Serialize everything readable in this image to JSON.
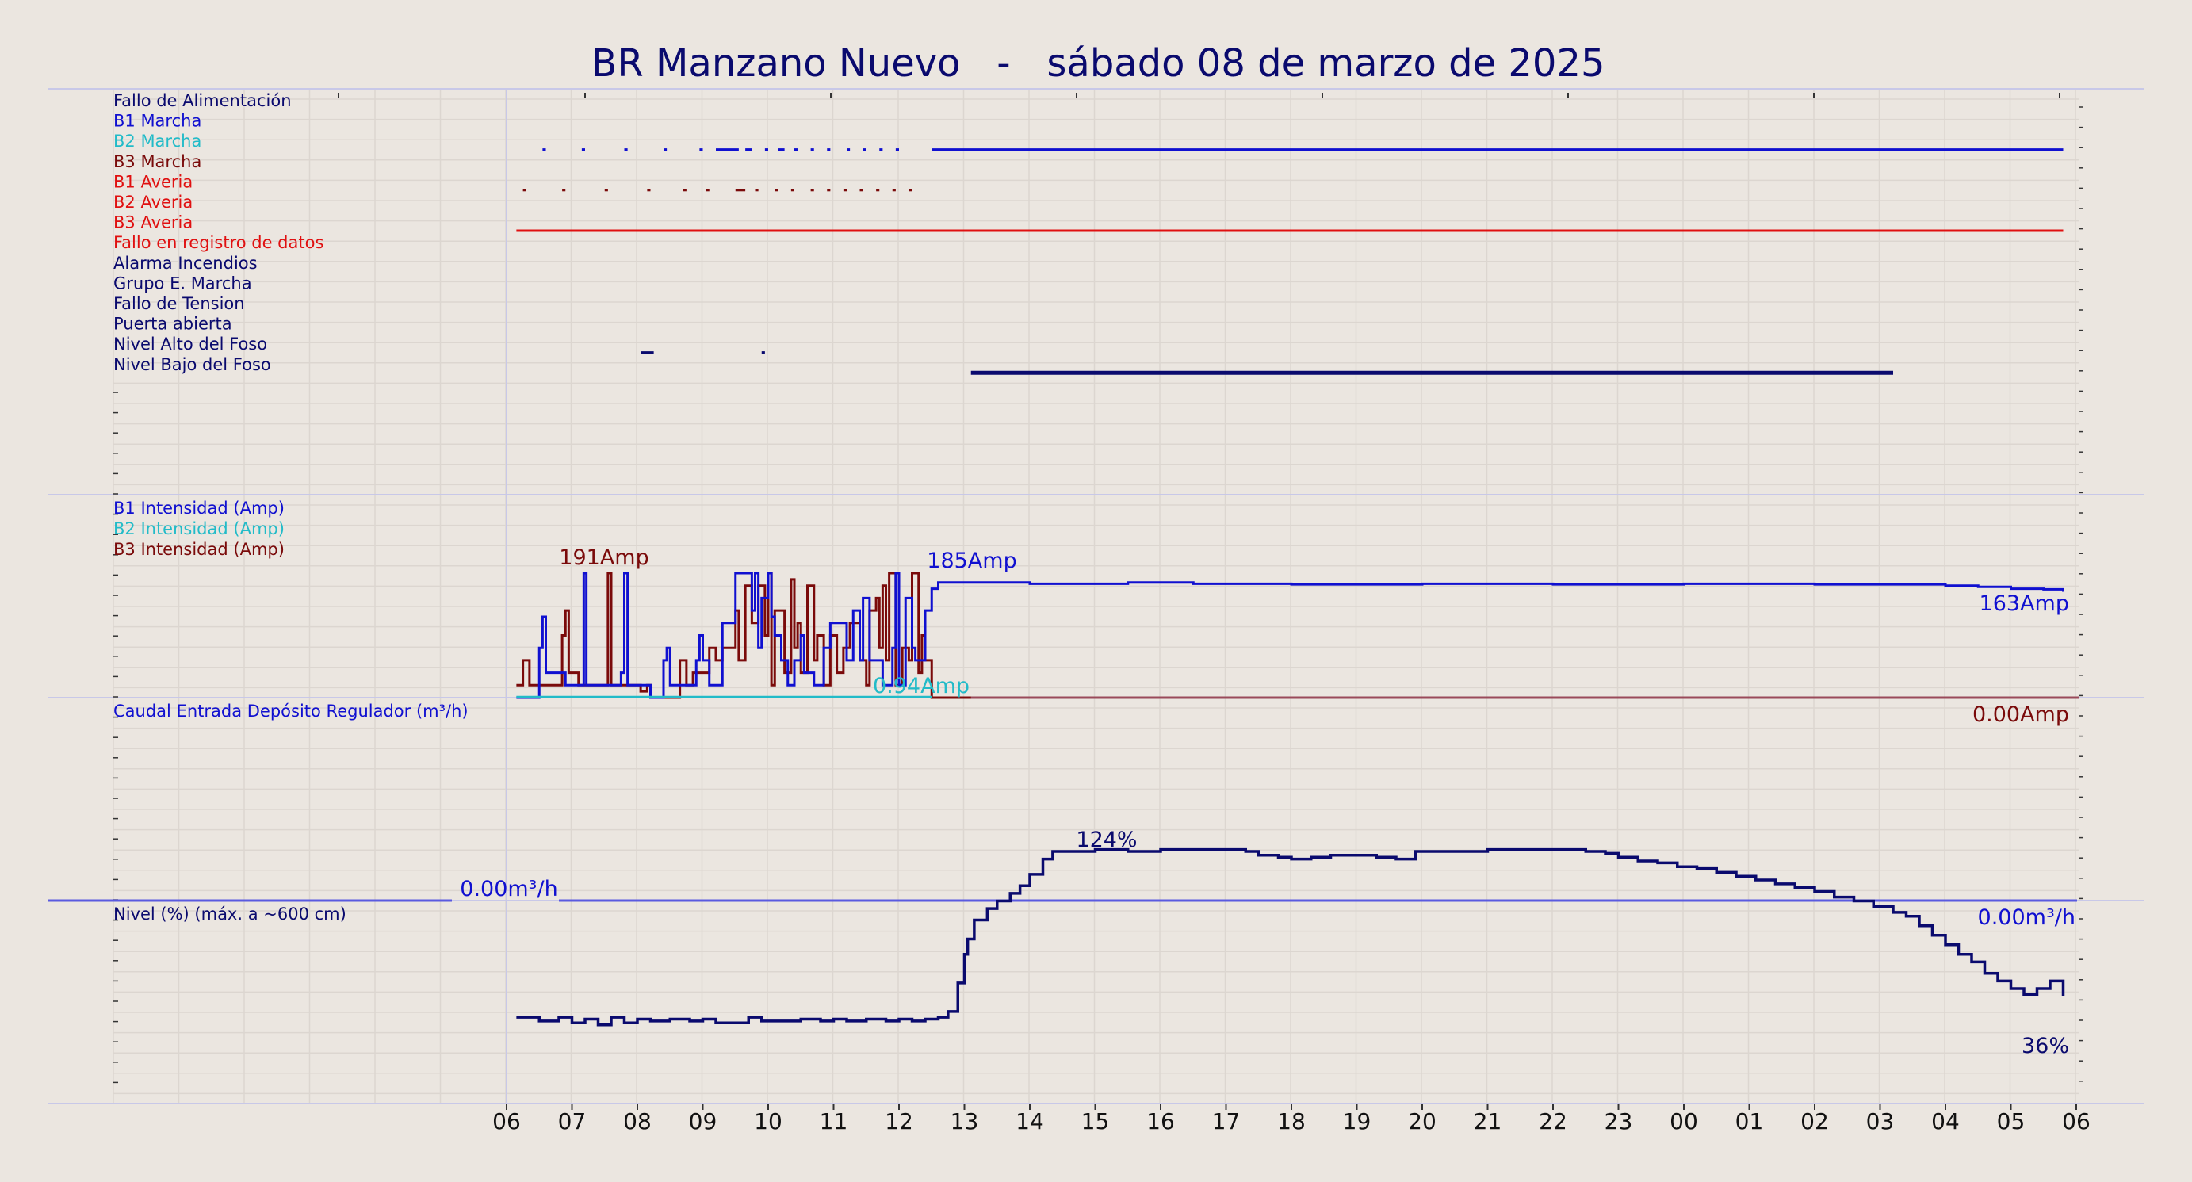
{
  "title": "BR Manzano Nuevo   -   sábado 08 de marzo de 2025",
  "colors": {
    "background": "#ebe6e0",
    "navy": "#0a0a6e",
    "blue": "#1010d0",
    "cyan": "#22bbc8",
    "maroon": "#7a0a0a",
    "red": "#e01010",
    "grid": "#dcd6d0",
    "panel_border": "#c8c8e8"
  },
  "x_ticks": [
    "06",
    "07",
    "08",
    "09",
    "10",
    "11",
    "12",
    "13",
    "14",
    "15",
    "16",
    "17",
    "18",
    "19",
    "20",
    "21",
    "22",
    "23",
    "00",
    "01",
    "02",
    "03",
    "04",
    "05",
    "06"
  ],
  "chart_data": [
    {
      "type": "line",
      "panel": "status-signals",
      "labels": [
        {
          "text": "Fallo de Alimentación",
          "color": "navy"
        },
        {
          "text": "B1 Marcha",
          "color": "blue"
        },
        {
          "text": "B2 Marcha",
          "color": "cyan"
        },
        {
          "text": "B3 Marcha",
          "color": "maroon"
        },
        {
          "text": "B1 Averia",
          "color": "red"
        },
        {
          "text": "B2 Averia",
          "color": "red"
        },
        {
          "text": "B3 Averia",
          "color": "red"
        },
        {
          "text": "Fallo en registro de datos",
          "color": "red"
        },
        {
          "text": "Alarma Incendios",
          "color": "navy"
        },
        {
          "text": "Grupo E. Marcha",
          "color": "navy"
        },
        {
          "text": "Fallo de Tension",
          "color": "navy"
        },
        {
          "text": "Puerta abierta",
          "color": "navy"
        },
        {
          "text": "Nivel Alto del Foso",
          "color": "navy"
        },
        {
          "text": "Nivel Bajo del Foso",
          "color": "navy"
        }
      ],
      "on_intervals_hours_from_06": {
        "B1 Marcha": [
          [
            0.55,
            0.6
          ],
          [
            1.15,
            1.2
          ],
          [
            1.8,
            1.85
          ],
          [
            2.4,
            2.45
          ],
          [
            2.95,
            3.0
          ],
          [
            3.2,
            3.55
          ],
          [
            3.65,
            3.75
          ],
          [
            3.95,
            4.0
          ],
          [
            4.15,
            4.25
          ],
          [
            4.4,
            4.45
          ],
          [
            4.65,
            4.7
          ],
          [
            4.9,
            4.95
          ],
          [
            5.2,
            5.25
          ],
          [
            5.45,
            5.5
          ],
          [
            5.7,
            5.75
          ],
          [
            5.95,
            6.0
          ],
          [
            6.5,
            23.8
          ]
        ],
        "B3 Marcha": [
          [
            0.25,
            0.3
          ],
          [
            0.85,
            0.9
          ],
          [
            1.5,
            1.55
          ],
          [
            2.15,
            2.2
          ],
          [
            2.7,
            2.75
          ],
          [
            3.05,
            3.1
          ],
          [
            3.5,
            3.65
          ],
          [
            3.8,
            3.85
          ],
          [
            4.1,
            4.15
          ],
          [
            4.35,
            4.4
          ],
          [
            4.65,
            4.7
          ],
          [
            4.9,
            4.95
          ],
          [
            5.15,
            5.2
          ],
          [
            5.4,
            5.45
          ],
          [
            5.65,
            5.7
          ],
          [
            5.9,
            5.95
          ],
          [
            6.15,
            6.2
          ]
        ],
        "B2 Averia": [
          [
            0.15,
            23.8
          ]
        ],
        "Puerta abierta": [
          [
            2.05,
            2.25
          ],
          [
            3.9,
            3.95
          ]
        ],
        "Nivel Alto del Foso": [
          [
            7.1,
            21.2
          ]
        ]
      }
    },
    {
      "type": "line",
      "panel": "currents",
      "series_labels": [
        {
          "text": "B1 Intensidad (Amp)",
          "color": "blue"
        },
        {
          "text": "B2 Intensidad (Amp)",
          "color": "cyan"
        },
        {
          "text": "B3 Intensidad (Amp)",
          "color": "maroon"
        }
      ],
      "ylim": [
        0,
        240
      ],
      "annotations": [
        {
          "text": "191Amp",
          "color": "maroon"
        },
        {
          "text": "185Amp",
          "color": "blue"
        },
        {
          "text": "0.94Amp",
          "color": "cyan"
        },
        {
          "text": "163Amp",
          "color": "blue"
        },
        {
          "text": "0.00Amp",
          "color": "maroon"
        }
      ],
      "b1_steps": [
        [
          0.15,
          0
        ],
        [
          0.5,
          80
        ],
        [
          0.55,
          130
        ],
        [
          0.6,
          40
        ],
        [
          0.9,
          20
        ],
        [
          1.15,
          20
        ],
        [
          1.18,
          200
        ],
        [
          1.22,
          20
        ],
        [
          1.5,
          20
        ],
        [
          1.75,
          40
        ],
        [
          1.8,
          200
        ],
        [
          1.85,
          20
        ],
        [
          2.1,
          20
        ],
        [
          2.2,
          0
        ],
        [
          2.4,
          60
        ],
        [
          2.45,
          80
        ],
        [
          2.5,
          20
        ],
        [
          2.7,
          20
        ],
        [
          2.9,
          60
        ],
        [
          2.95,
          100
        ],
        [
          3.0,
          60
        ],
        [
          3.1,
          20
        ],
        [
          3.3,
          120
        ],
        [
          3.5,
          200
        ],
        [
          3.7,
          200
        ],
        [
          3.75,
          140
        ],
        [
          3.8,
          200
        ],
        [
          3.85,
          80
        ],
        [
          3.9,
          160
        ],
        [
          4.0,
          200
        ],
        [
          4.05,
          130
        ],
        [
          4.1,
          100
        ],
        [
          4.2,
          60
        ],
        [
          4.3,
          20
        ],
        [
          4.4,
          60
        ],
        [
          4.5,
          100
        ],
        [
          4.55,
          40
        ],
        [
          4.7,
          20
        ],
        [
          4.85,
          80
        ],
        [
          4.95,
          120
        ],
        [
          5.1,
          120
        ],
        [
          5.2,
          60
        ],
        [
          5.3,
          140
        ],
        [
          5.4,
          60
        ],
        [
          5.45,
          160
        ],
        [
          5.55,
          60
        ],
        [
          5.75,
          20
        ],
        [
          5.9,
          80
        ],
        [
          5.95,
          200
        ],
        [
          6.0,
          20
        ],
        [
          6.1,
          160
        ],
        [
          6.2,
          80
        ],
        [
          6.25,
          60
        ],
        [
          6.35,
          60
        ],
        [
          6.4,
          140
        ],
        [
          6.5,
          175
        ],
        [
          6.6,
          185
        ],
        [
          6.75,
          185
        ],
        [
          7.0,
          185
        ],
        [
          8.0,
          183
        ],
        [
          9.5,
          185
        ],
        [
          10.5,
          183
        ],
        [
          12.0,
          182
        ],
        [
          14.0,
          183
        ],
        [
          16.0,
          182
        ],
        [
          18.0,
          183
        ],
        [
          20.0,
          182
        ],
        [
          22.0,
          180
        ],
        [
          22.5,
          178
        ],
        [
          23.0,
          175
        ],
        [
          23.5,
          174
        ],
        [
          23.8,
          170
        ]
      ],
      "b3_steps": [
        [
          0.15,
          20
        ],
        [
          0.25,
          60
        ],
        [
          0.35,
          20
        ],
        [
          0.8,
          20
        ],
        [
          0.85,
          100
        ],
        [
          0.9,
          140
        ],
        [
          0.95,
          40
        ],
        [
          1.1,
          20
        ],
        [
          1.2,
          20
        ],
        [
          1.5,
          20
        ],
        [
          1.55,
          200
        ],
        [
          1.6,
          20
        ],
        [
          1.75,
          20
        ],
        [
          2.0,
          20
        ],
        [
          2.05,
          10
        ],
        [
          2.15,
          20
        ],
        [
          2.2,
          0
        ],
        [
          2.5,
          0
        ],
        [
          2.65,
          60
        ],
        [
          2.75,
          20
        ],
        [
          2.85,
          40
        ],
        [
          3.1,
          80
        ],
        [
          3.2,
          60
        ],
        [
          3.3,
          80
        ],
        [
          3.45,
          80
        ],
        [
          3.5,
          140
        ],
        [
          3.55,
          60
        ],
        [
          3.65,
          180
        ],
        [
          3.75,
          120
        ],
        [
          3.85,
          180
        ],
        [
          3.95,
          100
        ],
        [
          4.0,
          200
        ],
        [
          4.05,
          20
        ],
        [
          4.1,
          140
        ],
        [
          4.25,
          40
        ],
        [
          4.35,
          190
        ],
        [
          4.4,
          80
        ],
        [
          4.45,
          120
        ],
        [
          4.5,
          40
        ],
        [
          4.6,
          180
        ],
        [
          4.7,
          60
        ],
        [
          4.75,
          100
        ],
        [
          4.85,
          20
        ],
        [
          4.95,
          100
        ],
        [
          5.05,
          40
        ],
        [
          5.15,
          80
        ],
        [
          5.25,
          120
        ],
        [
          5.4,
          60
        ],
        [
          5.5,
          20
        ],
        [
          5.55,
          140
        ],
        [
          5.65,
          160
        ],
        [
          5.7,
          80
        ],
        [
          5.75,
          180
        ],
        [
          5.8,
          60
        ],
        [
          5.85,
          200
        ],
        [
          5.95,
          20
        ],
        [
          6.05,
          80
        ],
        [
          6.15,
          60
        ],
        [
          6.2,
          200
        ],
        [
          6.3,
          40
        ],
        [
          6.35,
          100
        ],
        [
          6.4,
          60
        ],
        [
          6.5,
          0
        ],
        [
          23.8,
          0
        ]
      ],
      "b2_steps": [
        [
          0.15,
          0.94
        ],
        [
          6.5,
          0.94
        ]
      ]
    },
    {
      "type": "line",
      "panel": "flow",
      "series_labels": [
        {
          "text": "Caudal Entrada Depósito Regulador (m³/h)",
          "color": "blue"
        }
      ],
      "annotations": [
        {
          "text": "0.00m³/h",
          "color": "blue"
        },
        {
          "text": "0.00m³/h",
          "color": "blue"
        }
      ],
      "values": [
        [
          -0.7,
          0
        ],
        [
          23.8,
          0
        ]
      ]
    },
    {
      "type": "line",
      "panel": "level",
      "series_labels": [
        {
          "text": "Nivel (%) (máx. a ~600 cm)",
          "color": "navy"
        }
      ],
      "ylim": [
        0,
        160
      ],
      "annotations": [
        {
          "text": "124%",
          "color": "navy"
        },
        {
          "text": "36%",
          "color": "navy"
        }
      ],
      "level_steps": [
        [
          0.15,
          37
        ],
        [
          0.3,
          37
        ],
        [
          0.5,
          35
        ],
        [
          0.8,
          37
        ],
        [
          1.0,
          34
        ],
        [
          1.2,
          36
        ],
        [
          1.4,
          33
        ],
        [
          1.6,
          37
        ],
        [
          1.8,
          34
        ],
        [
          2.0,
          36
        ],
        [
          2.2,
          35
        ],
        [
          2.5,
          36
        ],
        [
          2.8,
          35
        ],
        [
          3.0,
          36
        ],
        [
          3.2,
          34
        ],
        [
          3.5,
          34
        ],
        [
          3.7,
          37
        ],
        [
          3.9,
          35
        ],
        [
          4.2,
          35
        ],
        [
          4.5,
          36
        ],
        [
          4.8,
          35
        ],
        [
          5.0,
          36
        ],
        [
          5.2,
          35
        ],
        [
          5.5,
          36
        ],
        [
          5.8,
          35
        ],
        [
          6.0,
          36
        ],
        [
          6.2,
          35
        ],
        [
          6.4,
          36
        ],
        [
          6.6,
          37
        ],
        [
          6.75,
          40
        ],
        [
          6.9,
          55
        ],
        [
          7.0,
          70
        ],
        [
          7.05,
          78
        ],
        [
          7.15,
          88
        ],
        [
          7.35,
          94
        ],
        [
          7.5,
          98
        ],
        [
          7.7,
          102
        ],
        [
          7.85,
          106
        ],
        [
          8.0,
          112
        ],
        [
          8.2,
          120
        ],
        [
          8.35,
          124
        ],
        [
          9.0,
          125
        ],
        [
          9.5,
          124
        ],
        [
          10.0,
          125
        ],
        [
          10.5,
          125
        ],
        [
          11.0,
          125
        ],
        [
          11.3,
          124
        ],
        [
          11.5,
          122
        ],
        [
          11.8,
          121
        ],
        [
          12.0,
          120
        ],
        [
          12.3,
          121
        ],
        [
          12.6,
          122
        ],
        [
          13.0,
          122
        ],
        [
          13.3,
          121
        ],
        [
          13.6,
          120
        ],
        [
          13.9,
          124
        ],
        [
          14.3,
          124
        ],
        [
          15.0,
          125
        ],
        [
          16.0,
          125
        ],
        [
          16.5,
          124
        ],
        [
          16.8,
          123
        ],
        [
          17.0,
          121
        ],
        [
          17.3,
          119
        ],
        [
          17.6,
          118
        ],
        [
          17.9,
          116
        ],
        [
          18.2,
          115
        ],
        [
          18.5,
          113
        ],
        [
          18.8,
          111
        ],
        [
          19.1,
          109
        ],
        [
          19.4,
          107
        ],
        [
          19.7,
          105
        ],
        [
          20.0,
          103
        ],
        [
          20.3,
          100
        ],
        [
          20.6,
          98
        ],
        [
          20.9,
          95
        ],
        [
          21.2,
          92
        ],
        [
          21.4,
          90
        ],
        [
          21.6,
          85
        ],
        [
          21.8,
          80
        ],
        [
          22.0,
          75
        ],
        [
          22.2,
          70
        ],
        [
          22.4,
          66
        ],
        [
          22.6,
          60
        ],
        [
          22.8,
          56
        ],
        [
          23.0,
          52
        ],
        [
          23.2,
          49
        ],
        [
          23.4,
          52
        ],
        [
          23.6,
          56
        ],
        [
          23.8,
          48
        ]
      ]
    }
  ]
}
